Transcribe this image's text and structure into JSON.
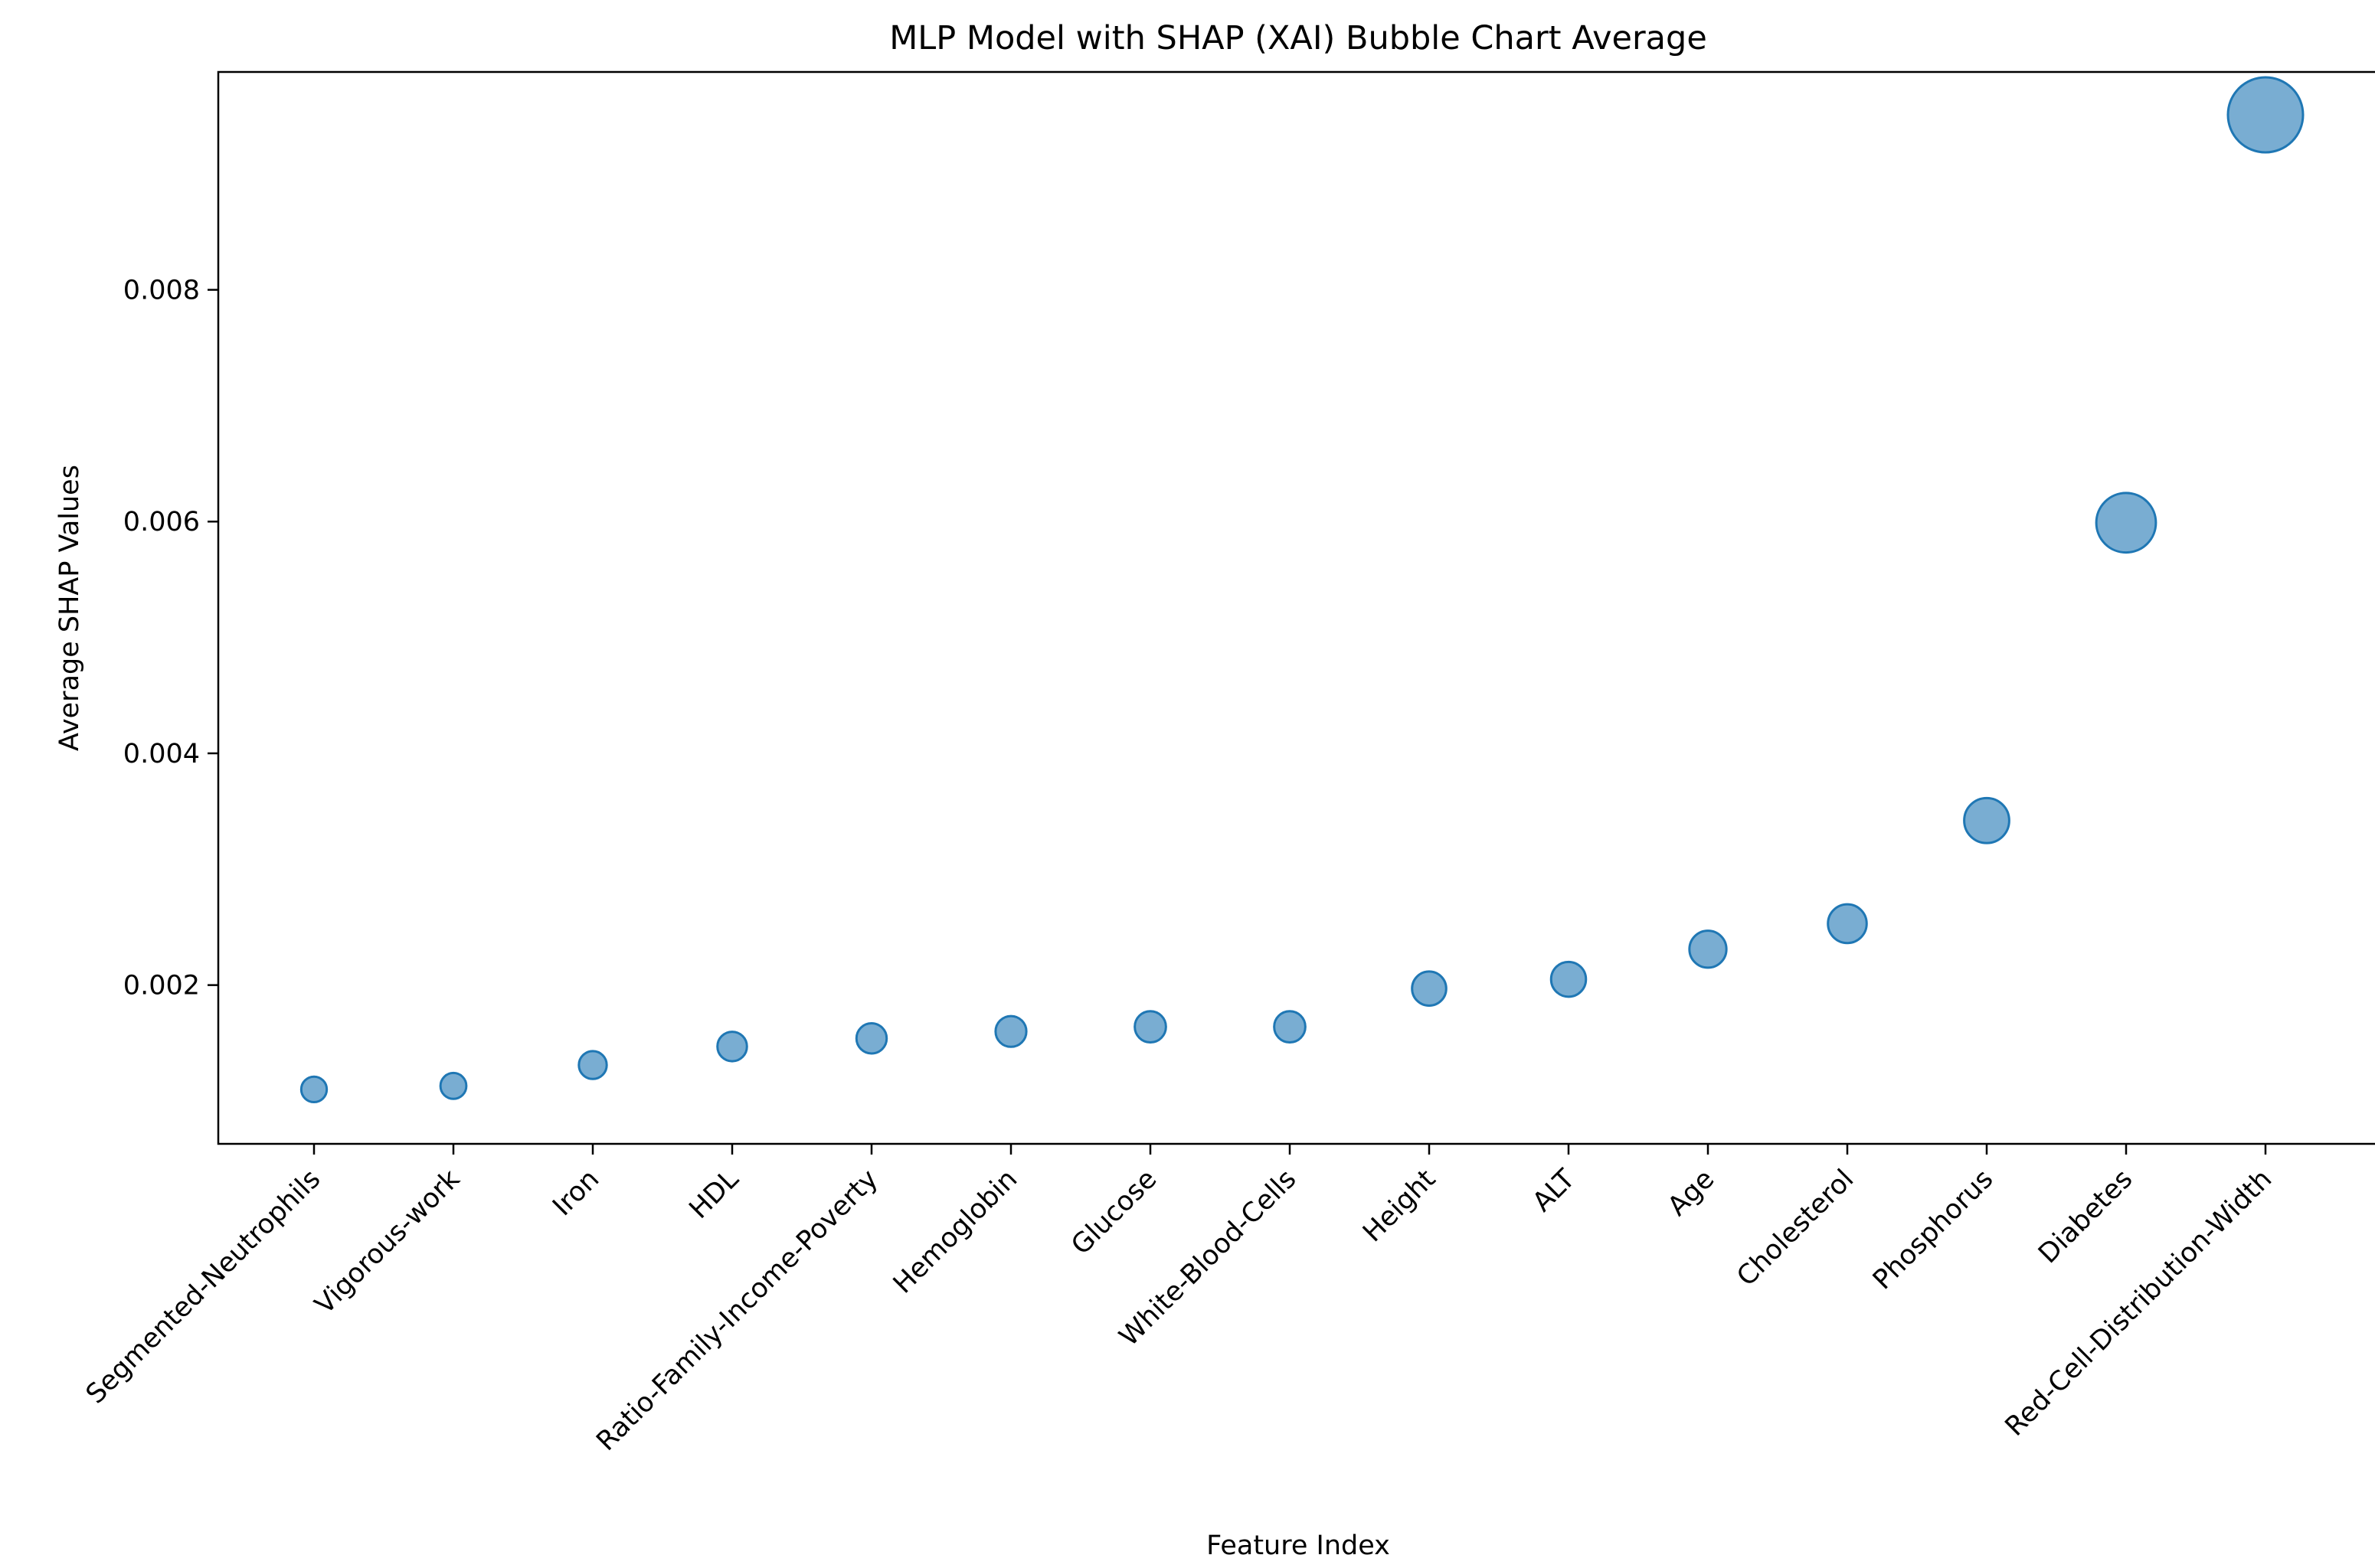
{
  "chart_data": {
    "type": "scatter",
    "title": "MLP Model with SHAP (XAI) Bubble Chart Average",
    "xlabel": "Feature Index",
    "ylabel": "Average SHAP Values",
    "ylim": [
      0.00063,
      0.00988
    ],
    "yticks": [
      0.002,
      0.004,
      0.006,
      0.008
    ],
    "ytick_labels": [
      "0.002",
      "0.004",
      "0.006",
      "0.008"
    ],
    "grid": false,
    "legend": "none",
    "marker_color": "#1f77b4",
    "size_encoding": "bubble area proportional to average SHAP value",
    "categories": [
      "Segmented-Neutrophils",
      "Vigorous-work",
      "Iron",
      "HDL",
      "Ratio-Family-Income-Poverty",
      "Hemoglobin",
      "Glucose",
      "White-Blood-Cells",
      "Height",
      "ALT",
      "Age",
      "Cholesterol",
      "Phosphorus",
      "Diabetes",
      "Red-Cell-Distribution-Width"
    ],
    "values": [
      0.0011,
      0.00113,
      0.00131,
      0.00147,
      0.00154,
      0.0016,
      0.00164,
      0.00164,
      0.00197,
      0.00205,
      0.00231,
      0.00253,
      0.00342,
      0.00599,
      0.00951
    ]
  }
}
